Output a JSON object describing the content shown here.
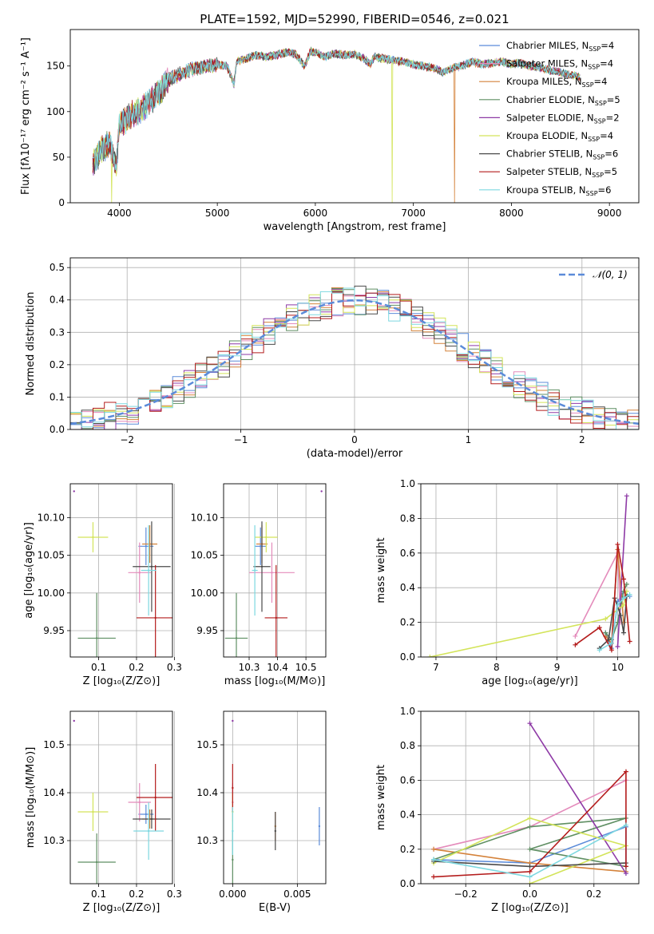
{
  "figure": {
    "title": "PLATE=1592, MJD=52990, FIBERID=0546, z=0.021"
  },
  "series": [
    {
      "name": "Chabrier MILES, N",
      "sub": "SSP",
      "tail": "=4",
      "color": "#5b8bd9"
    },
    {
      "name": "Salpeter MILES, N",
      "sub": "SSP",
      "tail": "=4",
      "color": "#e48bbb"
    },
    {
      "name": "Kroupa MILES, N",
      "sub": "SSP",
      "tail": "=4",
      "color": "#d4823a"
    },
    {
      "name": "Chabrier ELODIE, N",
      "sub": "SSP",
      "tail": "=5",
      "color": "#5f8f63"
    },
    {
      "name": "Salpeter ELODIE, N",
      "sub": "SSP",
      "tail": "=2",
      "color": "#8e3aa6"
    },
    {
      "name": "Kroupa ELODIE, N",
      "sub": "SSP",
      "tail": "=4",
      "color": "#d3e45a"
    },
    {
      "name": "Chabrier STELIB, N",
      "sub": "SSP",
      "tail": "=6",
      "color": "#4a4a4a"
    },
    {
      "name": "Salpeter STELIB, N",
      "sub": "SSP",
      "tail": "=5",
      "color": "#b41c1c"
    },
    {
      "name": "Kroupa STELIB, N",
      "sub": "SSP",
      "tail": "=6",
      "color": "#7dd8e0"
    }
  ],
  "chart_data": [
    {
      "id": "spectrum",
      "type": "line",
      "xlabel": "wavelength [Angstrom, rest frame]",
      "ylabel": "Flux [fλ10⁻¹⁷ erg cm⁻² s⁻¹ A⁻¹]",
      "xlim": [
        3500,
        9300
      ],
      "ylim": [
        0,
        190
      ],
      "xticks": [
        4000,
        5000,
        6000,
        7000,
        8000,
        9000
      ],
      "yticks": [
        0,
        50,
        100,
        150
      ],
      "spectrum_x": [
        3730,
        3800,
        3900,
        3970,
        4000,
        4100,
        4200,
        4300,
        4400,
        4500,
        4600,
        4700,
        4800,
        4900,
        5000,
        5100,
        5170,
        5200,
        5300,
        5400,
        5500,
        5600,
        5700,
        5800,
        5890,
        5950,
        6000,
        6100,
        6200,
        6300,
        6400,
        6500,
        6563,
        6600,
        6700,
        6800,
        6900,
        7000,
        7100,
        7200,
        7300,
        7400,
        7500,
        7600,
        7700,
        7800,
        7900,
        8000,
        8100,
        8200,
        8300,
        8400,
        8500,
        8600,
        8700
      ],
      "spectrum_y": [
        45,
        55,
        65,
        40,
        85,
        95,
        100,
        110,
        120,
        135,
        140,
        145,
        148,
        150,
        152,
        150,
        130,
        155,
        158,
        162,
        160,
        162,
        165,
        163,
        150,
        166,
        165,
        160,
        164,
        162,
        163,
        158,
        152,
        160,
        158,
        156,
        155,
        152,
        150,
        148,
        143,
        148,
        150,
        155,
        152,
        153,
        155,
        152,
        153,
        150,
        148,
        145,
        143,
        140,
        138
      ],
      "dropouts": [
        {
          "series": 5,
          "x": 3920
        },
        {
          "series": 5,
          "x": 6785
        },
        {
          "series": 2,
          "x": 7420
        }
      ]
    },
    {
      "id": "residuals",
      "type": "histogram",
      "xlabel": "(data-model)/error",
      "ylabel": "Normed distribution",
      "xlim": [
        -2.5,
        2.5
      ],
      "ylim": [
        0,
        0.53
      ],
      "xticks": [
        -2,
        -1,
        0,
        1,
        2
      ],
      "yticks": [
        0,
        0.1,
        0.2,
        0.3,
        0.4,
        0.5
      ],
      "legend": "𝒩(0, 1)",
      "bin_edges_from": -2.5,
      "bin_width": 0.1,
      "reference": "normal(0,1)"
    },
    {
      "id": "age-vs-Z",
      "type": "errorbar",
      "xlabel": "Z [log₁₀(Z/Z⊙)]",
      "ylabel": "age  [log₁₀(age/yr)]",
      "xlim": [
        0.025,
        0.295
      ],
      "ylim": [
        9.915,
        10.145
      ],
      "xticks": [
        0.1,
        0.2,
        0.3
      ],
      "yticks": [
        9.95,
        10.0,
        10.05,
        10.1
      ],
      "points": [
        {
          "series": 0,
          "x": 0.225,
          "y": 10.062,
          "xerr": 0.02,
          "yerr": 0.025
        },
        {
          "series": 1,
          "x": 0.208,
          "y": 10.027,
          "xerr": 0.03,
          "yerr": 0.04
        },
        {
          "series": 2,
          "x": 0.235,
          "y": 10.065,
          "xerr": 0.02,
          "yerr": 0.025
        },
        {
          "series": 3,
          "x": 0.095,
          "y": 9.94,
          "xerr": 0.05,
          "yerr": 0.06
        },
        {
          "series": 4,
          "x": 0.035,
          "y": 10.135,
          "xerr": 0.0,
          "yerr": 0.0
        },
        {
          "series": 5,
          "x": 0.085,
          "y": 10.074,
          "xerr": 0.04,
          "yerr": 0.02
        },
        {
          "series": 6,
          "x": 0.24,
          "y": 10.035,
          "xerr": 0.05,
          "yerr": 0.06
        },
        {
          "series": 7,
          "x": 0.25,
          "y": 9.967,
          "xerr": 0.05,
          "yerr": 0.07
        },
        {
          "series": 8,
          "x": 0.232,
          "y": 10.03,
          "xerr": 0.02,
          "yerr": 0.06
        }
      ]
    },
    {
      "id": "age-vs-mass",
      "type": "errorbar",
      "xlabel": "mass [log₁₀(M/M⊙)]",
      "ylabel": "",
      "xlim": [
        10.21,
        10.57
      ],
      "ylim": [
        9.915,
        10.145
      ],
      "xticks": [
        10.3,
        10.4,
        10.5
      ],
      "yticks": [
        9.95,
        10.0,
        10.05,
        10.1
      ],
      "points": [
        {
          "series": 0,
          "x": 10.34,
          "y": 10.062,
          "xerr": 0.02,
          "yerr": 0.025
        },
        {
          "series": 1,
          "x": 10.38,
          "y": 10.027,
          "xerr": 0.08,
          "yerr": 0.04
        },
        {
          "series": 2,
          "x": 10.345,
          "y": 10.065,
          "xerr": 0.02,
          "yerr": 0.025
        },
        {
          "series": 3,
          "x": 10.255,
          "y": 9.94,
          "xerr": 0.04,
          "yerr": 0.06
        },
        {
          "series": 4,
          "x": 10.555,
          "y": 10.135,
          "xerr": 0.0,
          "yerr": 0.0
        },
        {
          "series": 5,
          "x": 10.36,
          "y": 10.074,
          "xerr": 0.04,
          "yerr": 0.02
        },
        {
          "series": 6,
          "x": 10.345,
          "y": 10.035,
          "xerr": 0.03,
          "yerr": 0.06
        },
        {
          "series": 7,
          "x": 10.395,
          "y": 9.967,
          "xerr": 0.04,
          "yerr": 0.07
        },
        {
          "series": 8,
          "x": 10.32,
          "y": 10.03,
          "xerr": 0.01,
          "yerr": 0.06
        }
      ]
    },
    {
      "id": "weight-vs-age",
      "type": "line",
      "xlabel": "age  [log₁₀(age/yr)]",
      "ylabel": "mass weight",
      "xlim": [
        6.75,
        10.35
      ],
      "ylim": [
        0,
        1.0
      ],
      "xticks": [
        7,
        8,
        9,
        10
      ],
      "yticks": [
        0.0,
        0.2,
        0.4,
        0.6,
        0.8,
        1.0
      ],
      "lines": [
        {
          "series": 0,
          "x": [
            9.8,
            9.9,
            10.0,
            10.1,
            10.2
          ],
          "y": [
            0.14,
            0.05,
            0.32,
            0.38,
            0.35
          ]
        },
        {
          "series": 1,
          "x": [
            9.3,
            10.0,
            10.05
          ],
          "y": [
            0.12,
            0.6,
            0.2
          ]
        },
        {
          "series": 2,
          "x": [
            9.8,
            9.9,
            10.0,
            10.1
          ],
          "y": [
            0.12,
            0.08,
            0.62,
            0.2
          ]
        },
        {
          "series": 3,
          "x": [
            9.8,
            9.9,
            10.0,
            10.1,
            10.15
          ],
          "y": [
            0.14,
            0.1,
            0.2,
            0.38,
            0.42
          ]
        },
        {
          "series": 4,
          "x": [
            10.0,
            10.15
          ],
          "y": [
            0.06,
            0.93
          ]
        },
        {
          "series": 5,
          "x": [
            6.9,
            9.8,
            10.1,
            10.15
          ],
          "y": [
            0.0,
            0.22,
            0.3,
            0.38
          ]
        },
        {
          "series": 6,
          "x": [
            9.7,
            9.85,
            9.95,
            10.05,
            10.1,
            10.15
          ],
          "y": [
            0.05,
            0.1,
            0.34,
            0.24,
            0.14,
            0.35
          ]
        },
        {
          "series": 7,
          "x": [
            9.3,
            9.7,
            9.9,
            10.0,
            10.1,
            10.2
          ],
          "y": [
            0.07,
            0.17,
            0.04,
            0.65,
            0.45,
            0.09
          ]
        },
        {
          "series": 8,
          "x": [
            9.7,
            9.9,
            10.0,
            10.1,
            10.2
          ],
          "y": [
            0.04,
            0.08,
            0.3,
            0.34,
            0.36
          ]
        }
      ]
    },
    {
      "id": "mass-vs-Z",
      "type": "errorbar",
      "xlabel": "Z [log₁₀(Z/Z⊙)]",
      "ylabel": "mass [log₁₀(M/M⊙)]",
      "xlim": [
        0.025,
        0.295
      ],
      "ylim": [
        10.21,
        10.57
      ],
      "xticks": [
        0.1,
        0.2,
        0.3
      ],
      "yticks": [
        10.3,
        10.4,
        10.5
      ],
      "points": [
        {
          "series": 0,
          "x": 0.225,
          "y": 10.355,
          "xerr": 0.02,
          "yerr": 0.02
        },
        {
          "series": 1,
          "x": 0.208,
          "y": 10.38,
          "xerr": 0.03,
          "yerr": 0.04
        },
        {
          "series": 2,
          "x": 0.235,
          "y": 10.345,
          "xerr": 0.02,
          "yerr": 0.02
        },
        {
          "series": 3,
          "x": 0.095,
          "y": 10.255,
          "xerr": 0.05,
          "yerr": 0.06
        },
        {
          "series": 4,
          "x": 0.035,
          "y": 10.55,
          "xerr": 0.0,
          "yerr": 0.0
        },
        {
          "series": 5,
          "x": 0.085,
          "y": 10.36,
          "xerr": 0.04,
          "yerr": 0.04
        },
        {
          "series": 6,
          "x": 0.24,
          "y": 10.345,
          "xerr": 0.05,
          "yerr": 0.02
        },
        {
          "series": 7,
          "x": 0.25,
          "y": 10.39,
          "xerr": 0.05,
          "yerr": 0.07
        },
        {
          "series": 8,
          "x": 0.232,
          "y": 10.32,
          "xerr": 0.04,
          "yerr": 0.06
        }
      ]
    },
    {
      "id": "mass-vs-EBV",
      "type": "errorbar",
      "xlabel": "E(B-V)",
      "ylabel": "",
      "xlim": [
        -0.0007,
        0.0072
      ],
      "ylim": [
        10.21,
        10.57
      ],
      "xticks": [
        0.0,
        0.005
      ],
      "yticks": [
        10.3,
        10.4,
        10.5
      ],
      "points": [
        {
          "series": 0,
          "x": 0.0067,
          "y": 10.33,
          "xerr": 0.0,
          "yerr": 0.04
        },
        {
          "series": 1,
          "x": 0.0,
          "y": 10.38,
          "xerr": 0.0,
          "yerr": 0.04
        },
        {
          "series": 2,
          "x": 0.0033,
          "y": 10.33,
          "xerr": 0.0,
          "yerr": 0.03
        },
        {
          "series": 3,
          "x": 0.0,
          "y": 10.26,
          "xerr": 0.0,
          "yerr": 0.06
        },
        {
          "series": 4,
          "x": 0.0,
          "y": 10.55,
          "xerr": 0.0,
          "yerr": 0.0
        },
        {
          "series": 5,
          "x": 0.0,
          "y": 10.36,
          "xerr": 0.0,
          "yerr": 0.04
        },
        {
          "series": 6,
          "x": 0.0033,
          "y": 10.32,
          "xerr": 0.0,
          "yerr": 0.04
        },
        {
          "series": 7,
          "x": 0.0,
          "y": 10.41,
          "xerr": 0.0,
          "yerr": 0.05
        },
        {
          "series": 8,
          "x": 0.0,
          "y": 10.32,
          "xerr": 0.0,
          "yerr": 0.05
        }
      ]
    },
    {
      "id": "weight-vs-Z",
      "type": "line",
      "xlabel": "Z [log₁₀(Z/Z⊙)]",
      "ylabel": "mass weight",
      "xlim": [
        -0.34,
        0.34
      ],
      "ylim": [
        0,
        1.0
      ],
      "xticks": [
        -0.2,
        0.0,
        0.2
      ],
      "yticks": [
        0.0,
        0.2,
        0.4,
        0.6,
        0.8,
        1.0
      ],
      "lines": [
        {
          "series": 0,
          "x": [
            -0.3,
            0.0,
            0.3,
            0.3
          ],
          "y": [
            0.14,
            0.12,
            0.33,
            0.06
          ]
        },
        {
          "series": 1,
          "x": [
            -0.3,
            0.0,
            0.3
          ],
          "y": [
            0.2,
            0.33,
            0.6
          ]
        },
        {
          "series": 2,
          "x": [
            -0.3,
            0.0,
            0.3
          ],
          "y": [
            0.2,
            0.12,
            0.07
          ]
        },
        {
          "series": 3,
          "x": [
            -0.3,
            0.0,
            0.3,
            0.0,
            0.3
          ],
          "y": [
            0.14,
            0.33,
            0.38,
            0.2,
            0.1
          ]
        },
        {
          "series": 4,
          "x": [
            0.0,
            0.3
          ],
          "y": [
            0.93,
            0.06
          ]
        },
        {
          "series": 5,
          "x": [
            -0.3,
            0.0,
            0.3,
            0.0
          ],
          "y": [
            0.12,
            0.38,
            0.22,
            0.0
          ]
        },
        {
          "series": 6,
          "x": [
            -0.3,
            0.0,
            0.3
          ],
          "y": [
            0.13,
            0.1,
            0.12
          ]
        },
        {
          "series": 7,
          "x": [
            -0.3,
            0.0,
            0.3,
            0.3
          ],
          "y": [
            0.04,
            0.07,
            0.65,
            0.1
          ]
        },
        {
          "series": 8,
          "x": [
            -0.3,
            0.0,
            0.3
          ],
          "y": [
            0.14,
            0.04,
            0.34
          ]
        }
      ]
    }
  ]
}
